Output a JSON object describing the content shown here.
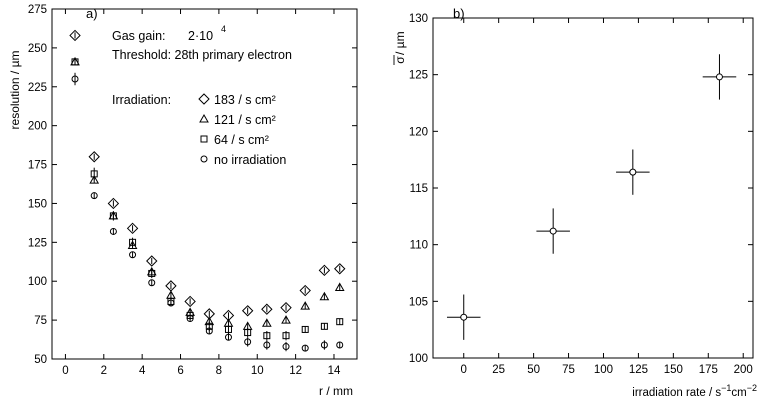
{
  "chart_data": [
    {
      "type": "scatter",
      "panel_label": "a)",
      "xlabel": "r / mm",
      "ylabel": "resolution / µm",
      "xlim": [
        -0.7,
        15.2
      ],
      "ylim": [
        50,
        275
      ],
      "xticks": [
        0,
        2,
        4,
        6,
        8,
        10,
        12,
        14
      ],
      "yticks": [
        50,
        75,
        100,
        125,
        150,
        175,
        200,
        225,
        250,
        275
      ],
      "grid": false,
      "annotations": {
        "gas_gain_label": "Gas gain:",
        "gas_gain_value": "2·10",
        "gas_gain_exponent": "4",
        "threshold_label": "Threshold: 28th primary electron",
        "irradiation_label": "Irradiation:"
      },
      "legend_position": "upper-middle",
      "series": [
        {
          "name": "183 / s cm²",
          "marker": "diamond",
          "x": [
            0.5,
            1.5,
            2.5,
            3.5,
            4.5,
            5.5,
            6.5,
            7.5,
            8.5,
            9.5,
            10.5,
            11.5,
            12.5,
            13.5,
            14.3
          ],
          "y": [
            258,
            180,
            150,
            134,
            113,
            97,
            87,
            79,
            78,
            81,
            82,
            83,
            94,
            107,
            108
          ],
          "yerr": [
            2,
            2,
            2,
            2,
            2,
            2,
            2,
            2,
            2,
            2,
            2,
            2,
            2,
            2,
            2
          ]
        },
        {
          "name": "121 / s cm²",
          "marker": "triangle",
          "x": [
            0.5,
            1.5,
            2.5,
            3.5,
            4.5,
            5.5,
            6.5,
            7.5,
            8.5,
            9.5,
            10.5,
            11.5,
            12.5,
            13.5,
            14.3
          ],
          "y": [
            241,
            165,
            142,
            123,
            106,
            91,
            80,
            74,
            73,
            71,
            73,
            75,
            84,
            90,
            96
          ],
          "yerr": [
            2,
            2,
            2,
            2,
            2,
            2,
            2,
            2,
            2,
            2,
            2,
            2,
            2,
            2,
            2
          ]
        },
        {
          "name": "64 / s cm²",
          "marker": "square",
          "x": [
            0.5,
            1.5,
            2.5,
            3.5,
            4.5,
            5.5,
            6.5,
            7.5,
            8.5,
            9.5,
            10.5,
            11.5,
            12.5,
            13.5,
            14.3
          ],
          "y": [
            241,
            169,
            142,
            125,
            105,
            87,
            78,
            71,
            69,
            67,
            65,
            65,
            69,
            71,
            74
          ],
          "yerr": [
            2,
            4,
            3,
            3,
            3,
            3,
            3,
            3,
            3,
            3,
            3,
            3,
            2,
            2,
            2
          ]
        },
        {
          "name": "no irradiation",
          "marker": "circle",
          "x": [
            0.5,
            1.5,
            2.5,
            3.5,
            4.5,
            5.5,
            6.5,
            7.5,
            8.5,
            9.5,
            10.5,
            11.5,
            12.5,
            13.5,
            14.3
          ],
          "y": [
            230,
            155,
            132,
            117,
            99,
            86,
            76,
            68,
            64,
            61,
            59,
            58,
            57,
            59,
            59
          ],
          "yerr": [
            4,
            2,
            2,
            2,
            2,
            2,
            2,
            2,
            2,
            3,
            3,
            3,
            2,
            3,
            2
          ]
        }
      ]
    },
    {
      "type": "scatter",
      "panel_label": "b)",
      "xlabel_base": "irradiation rate / s",
      "xlabel_exp1": "−1",
      "xlabel_mid": "cm",
      "xlabel_exp2": "−2",
      "ylabel_sigma": "σ",
      "ylabel_unit": " / µm",
      "xlim": [
        -22,
        207
      ],
      "ylim": [
        100,
        130
      ],
      "xticks": [
        0,
        25,
        50,
        75,
        100,
        125,
        150,
        175,
        200
      ],
      "yticks": [
        100,
        105,
        110,
        115,
        120,
        125,
        130
      ],
      "grid": false,
      "series": [
        {
          "marker": "circle",
          "x": [
            0,
            64,
            121,
            183
          ],
          "y": [
            103.6,
            111.2,
            116.4,
            124.8
          ],
          "xerr": [
            12,
            12,
            12,
            12
          ],
          "yerr": [
            2.0,
            2.0,
            2.0,
            2.0
          ]
        }
      ]
    }
  ]
}
